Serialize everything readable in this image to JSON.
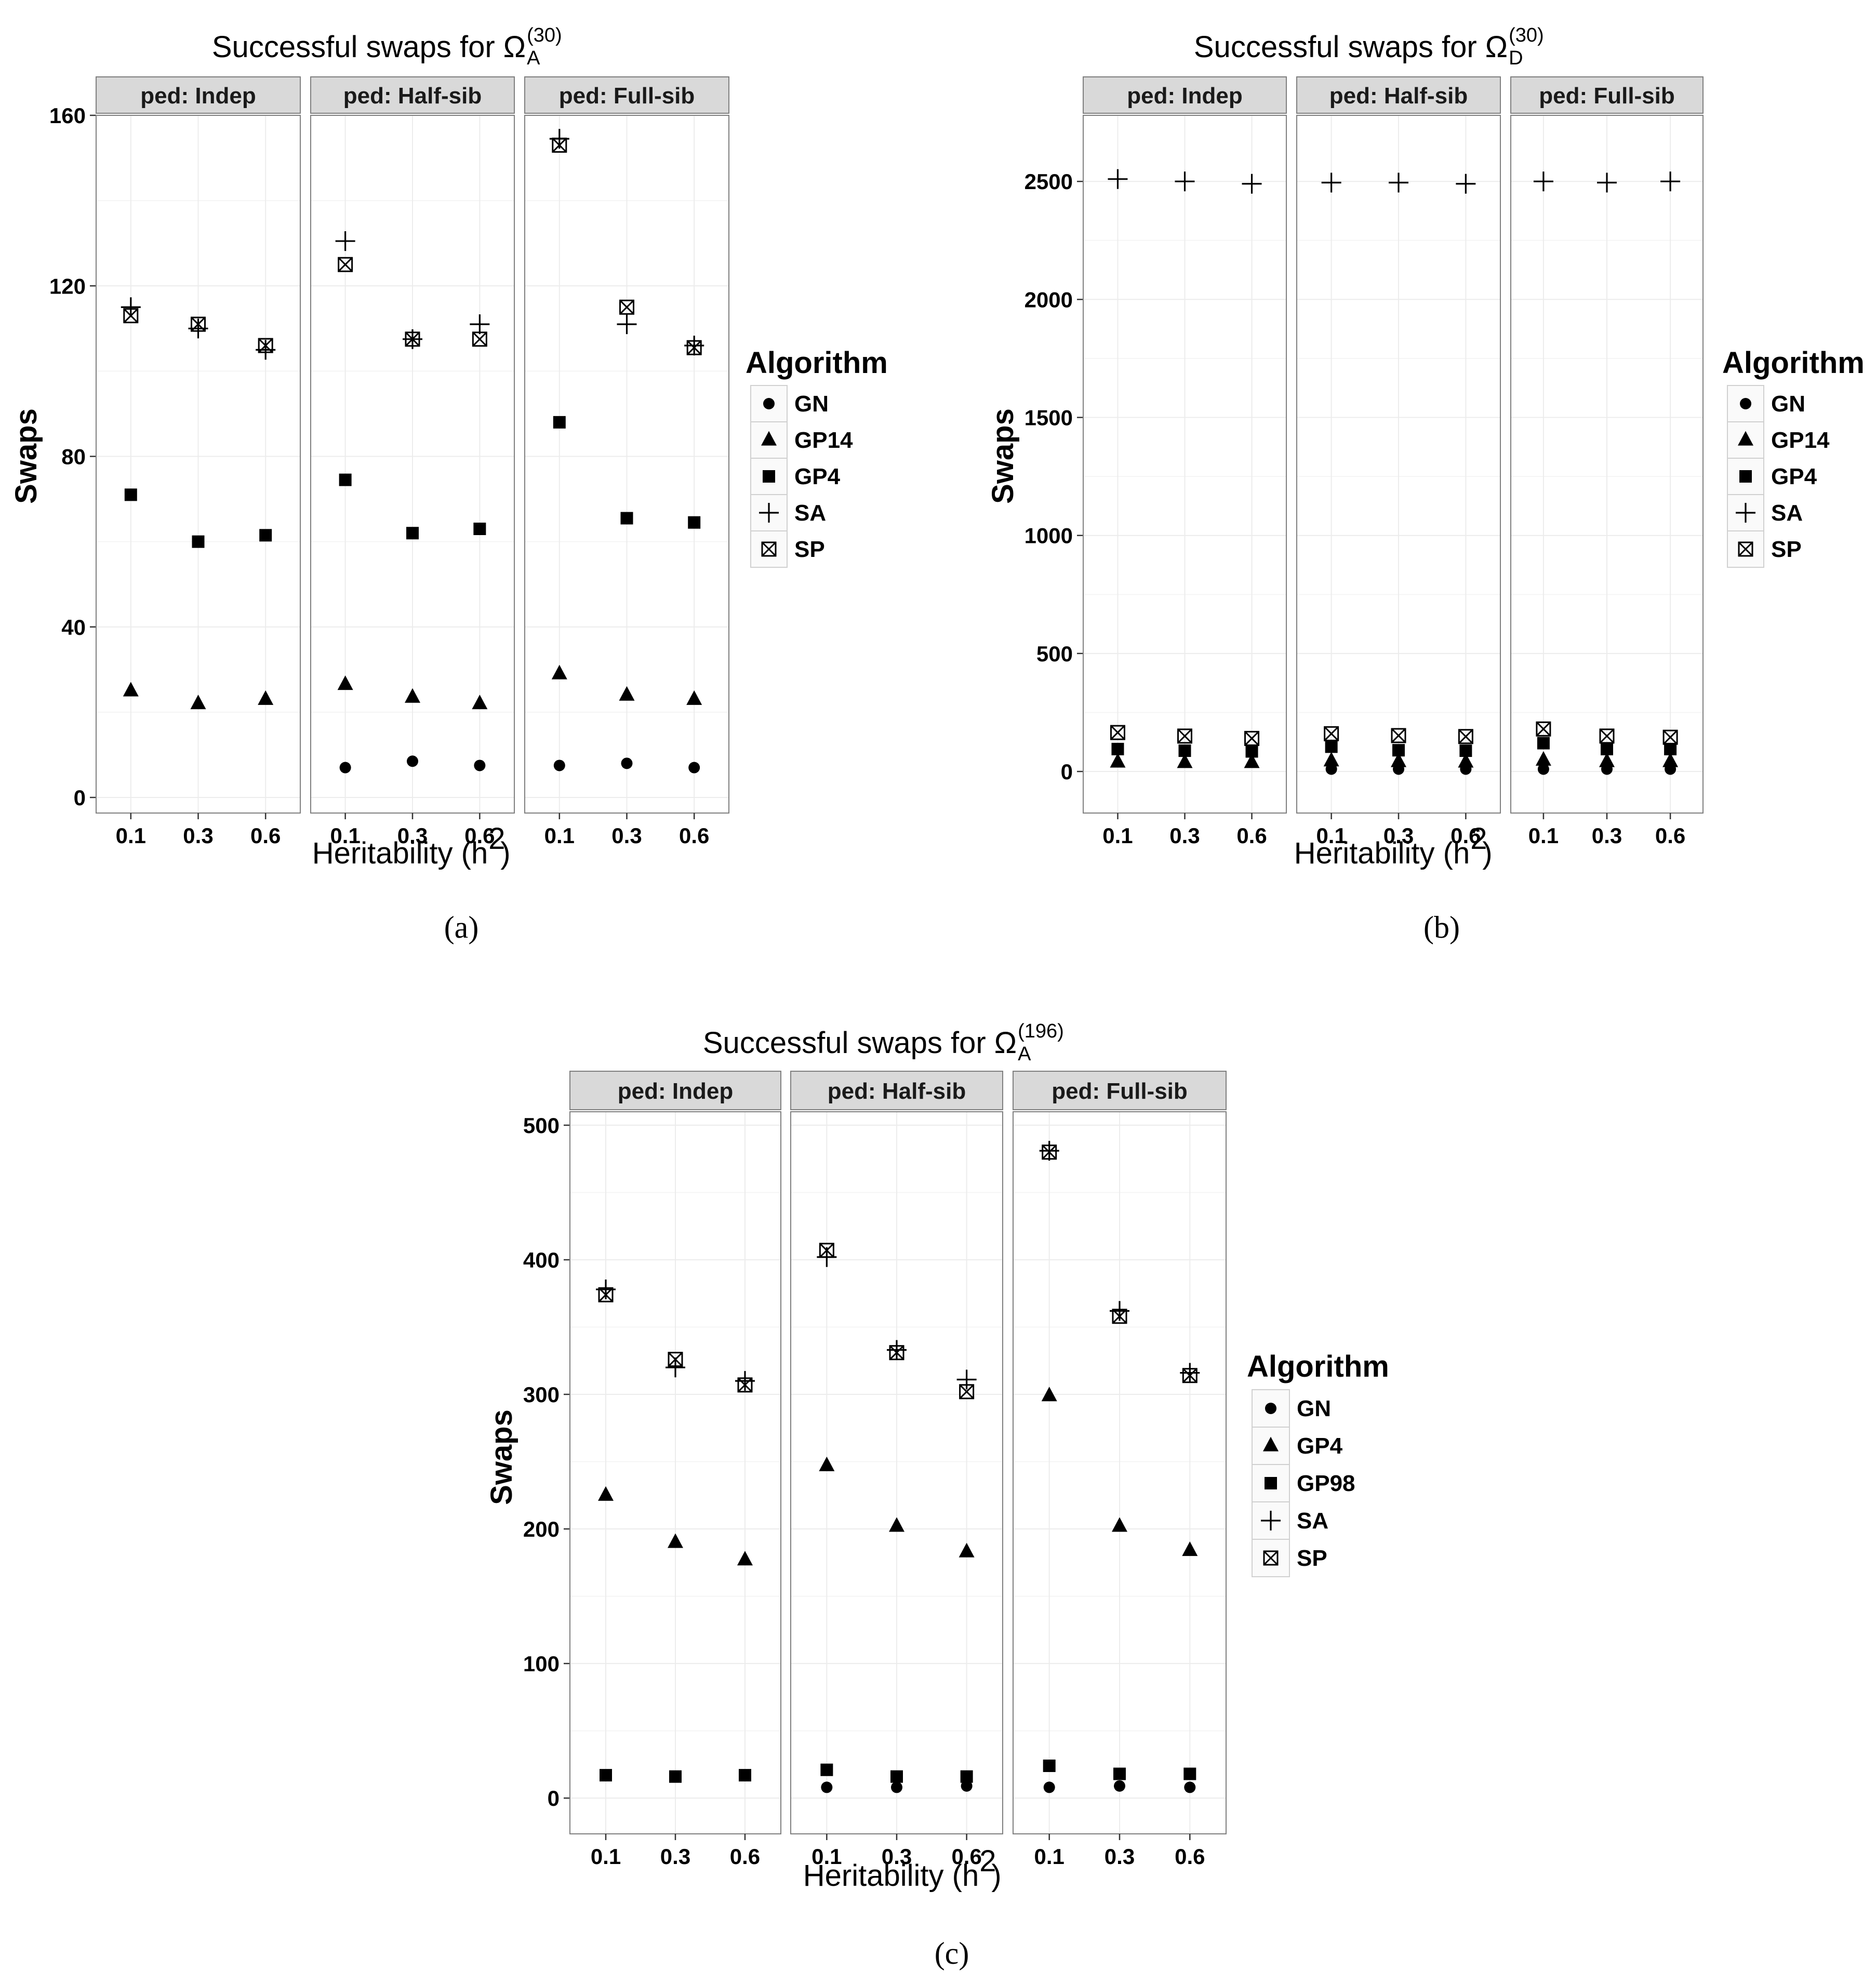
{
  "chart_data": [
    {
      "type": "scatter",
      "title": {
        "main": "Successful swaps for Ω",
        "sup": "(30)",
        "sub": "A"
      },
      "xlabel": {
        "main": "Heritability (h",
        "sup": "2",
        "end": ")"
      },
      "ylabel": "Swaps",
      "caption": "(a)",
      "panels": [
        "ped: Indep",
        "ped: Half-sib",
        "ped: Full-sib"
      ],
      "x": [
        "0.1",
        "0.3",
        "0.6"
      ],
      "ylim": [
        0,
        160
      ],
      "yticks": [
        0,
        40,
        80,
        120,
        160
      ],
      "grid": true,
      "legend": {
        "title": "Algorithm",
        "position": "right"
      },
      "series": [
        {
          "name": "GN",
          "shape": "circle",
          "values": [
            [
              null,
              null,
              null
            ],
            [
              7,
              8.5,
              7.5
            ],
            [
              7.5,
              8,
              7
            ]
          ]
        },
        {
          "name": "GP14",
          "shape": "triangle",
          "values": [
            [
              25,
              22,
              23
            ],
            [
              26.5,
              23.5,
              22
            ],
            [
              29,
              24,
              23
            ]
          ]
        },
        {
          "name": "GP4",
          "shape": "square",
          "values": [
            [
              71,
              60,
              61.5
            ],
            [
              74.5,
              62,
              63
            ],
            [
              88,
              65.5,
              64.5
            ]
          ]
        },
        {
          "name": "SA",
          "shape": "plus",
          "values": [
            [
              115,
              110,
              105
            ],
            [
              130.5,
              107.5,
              111
            ],
            [
              154.5,
              111,
              106
            ]
          ]
        },
        {
          "name": "SP",
          "shape": "boxx",
          "values": [
            [
              113,
              111,
              106
            ],
            [
              125,
              107.5,
              107.5
            ],
            [
              153,
              115,
              105.5
            ]
          ]
        }
      ]
    },
    {
      "type": "scatter",
      "title": {
        "main": "Successful swaps for Ω",
        "sup": "(30)",
        "sub": "D"
      },
      "xlabel": {
        "main": "Heritability (h",
        "sup": "2",
        "end": ")"
      },
      "ylabel": "Swaps",
      "caption": "(b)",
      "panels": [
        "ped: Indep",
        "ped: Half-sib",
        "ped: Full-sib"
      ],
      "x": [
        "0.1",
        "0.3",
        "0.6"
      ],
      "ylim": [
        -110,
        2780
      ],
      "yticks": [
        0,
        500,
        1000,
        1500,
        2000,
        2500
      ],
      "grid": true,
      "legend": {
        "title": "Algorithm",
        "position": "right"
      },
      "series": [
        {
          "name": "GN",
          "shape": "circle",
          "values": [
            [
              null,
              null,
              null
            ],
            [
              10,
              10,
              10
            ],
            [
              10,
              10,
              10
            ]
          ]
        },
        {
          "name": "GP14",
          "shape": "triangle",
          "values": [
            [
              40,
              38,
              38
            ],
            [
              45,
              42,
              40
            ],
            [
              48,
              42,
              42
            ]
          ]
        },
        {
          "name": "GP4",
          "shape": "square",
          "values": [
            [
              95,
              88,
              85
            ],
            [
              105,
              90,
              88
            ],
            [
              120,
              95,
              95
            ]
          ]
        },
        {
          "name": "SA",
          "shape": "plus",
          "values": [
            [
              2510,
              2500,
              2490
            ],
            [
              2495,
              2495,
              2490
            ],
            [
              2500,
              2495,
              2500
            ]
          ]
        },
        {
          "name": "SP",
          "shape": "boxx",
          "values": [
            [
              165,
              150,
              140
            ],
            [
              160,
              152,
              148
            ],
            [
              180,
              150,
              145
            ]
          ]
        }
      ]
    },
    {
      "type": "scatter",
      "title": {
        "main": "Successful swaps for Ω",
        "sup": "(196)",
        "sub": "A"
      },
      "xlabel": {
        "main": "Heritability (h",
        "sup": "2",
        "end": ")"
      },
      "ylabel": "Swaps",
      "caption": "(c)",
      "panels": [
        "ped: Indep",
        "ped: Half-sib",
        "ped: Full-sib"
      ],
      "x": [
        "0.1",
        "0.3",
        "0.6"
      ],
      "ylim": [
        -15,
        510
      ],
      "yticks": [
        0,
        100,
        200,
        300,
        400,
        500
      ],
      "grid": true,
      "legend": {
        "title": "Algorithm",
        "position": "right"
      },
      "series": [
        {
          "name": "GN",
          "shape": "circle",
          "values": [
            [
              null,
              null,
              null
            ],
            [
              8,
              8,
              9
            ],
            [
              8,
              9,
              8
            ]
          ]
        },
        {
          "name": "GP4",
          "shape": "triangle",
          "values": [
            [
              225,
              190,
              177
            ],
            [
              247,
              202,
              183
            ],
            [
              299,
              202,
              184
            ]
          ]
        },
        {
          "name": "GP98",
          "shape": "square",
          "values": [
            [
              17,
              16,
              17
            ],
            [
              21,
              16,
              16
            ],
            [
              24,
              18,
              18
            ]
          ]
        },
        {
          "name": "SA",
          "shape": "plus",
          "values": [
            [
              378,
              320,
              310
            ],
            [
              402,
              333,
              311
            ],
            [
              481,
              362,
              316
            ]
          ]
        },
        {
          "name": "SP",
          "shape": "boxx",
          "values": [
            [
              374,
              326,
              307
            ],
            [
              407,
              331,
              302
            ],
            [
              480,
              358,
              314
            ]
          ]
        }
      ]
    }
  ]
}
